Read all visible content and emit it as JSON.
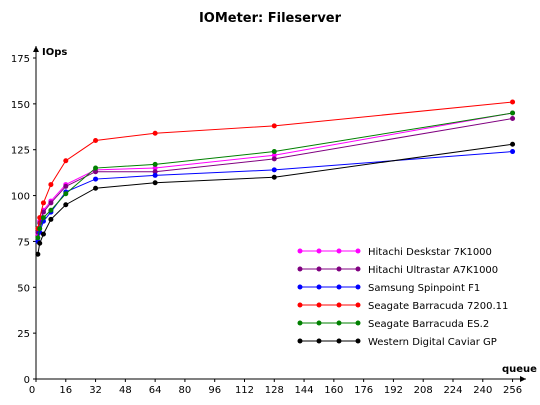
{
  "chart_data": {
    "type": "line",
    "title": "IOMeter: Fileserver",
    "ylabel": "IOps",
    "xlabel": "queue",
    "x": [
      1,
      2,
      4,
      8,
      16,
      32,
      64,
      128,
      256
    ],
    "xticks": [
      0,
      16,
      32,
      48,
      64,
      80,
      96,
      112,
      128,
      144,
      160,
      176,
      192,
      208,
      224,
      240,
      256
    ],
    "yticks": [
      0,
      25,
      50,
      75,
      100,
      125,
      150,
      175
    ],
    "xlim": [
      0,
      260
    ],
    "ylim": [
      0,
      175
    ],
    "grid": false,
    "legend_position": "bottom-right",
    "series": [
      {
        "name": "Hitachi Deskstar 7K1000",
        "color": "#ff00ff",
        "values": [
          79,
          86,
          92,
          97,
          106,
          114,
          115,
          122,
          145
        ]
      },
      {
        "name": "Hitachi Ultrastar A7K1000",
        "color": "#800080",
        "values": [
          80,
          85,
          91,
          96,
          105,
          113,
          113,
          120,
          142
        ]
      },
      {
        "name": "Samsung Spinpoint F1",
        "color": "#0000ff",
        "values": [
          75,
          80,
          86,
          91,
          102,
          109,
          111,
          114,
          124
        ]
      },
      {
        "name": "Seagate Barracuda 7200.11",
        "color": "#ff0000",
        "values": [
          82,
          88,
          96,
          106,
          119,
          130,
          134,
          138,
          151
        ]
      },
      {
        "name": "Seagate Barracuda ES.2",
        "color": "#008000",
        "values": [
          77,
          82,
          88,
          92,
          101,
          115,
          117,
          124,
          145
        ]
      },
      {
        "name": "Western Digital Caviar GP",
        "color": "#000000",
        "values": [
          68,
          74,
          79,
          87,
          95,
          104,
          107,
          110,
          128
        ]
      }
    ]
  }
}
